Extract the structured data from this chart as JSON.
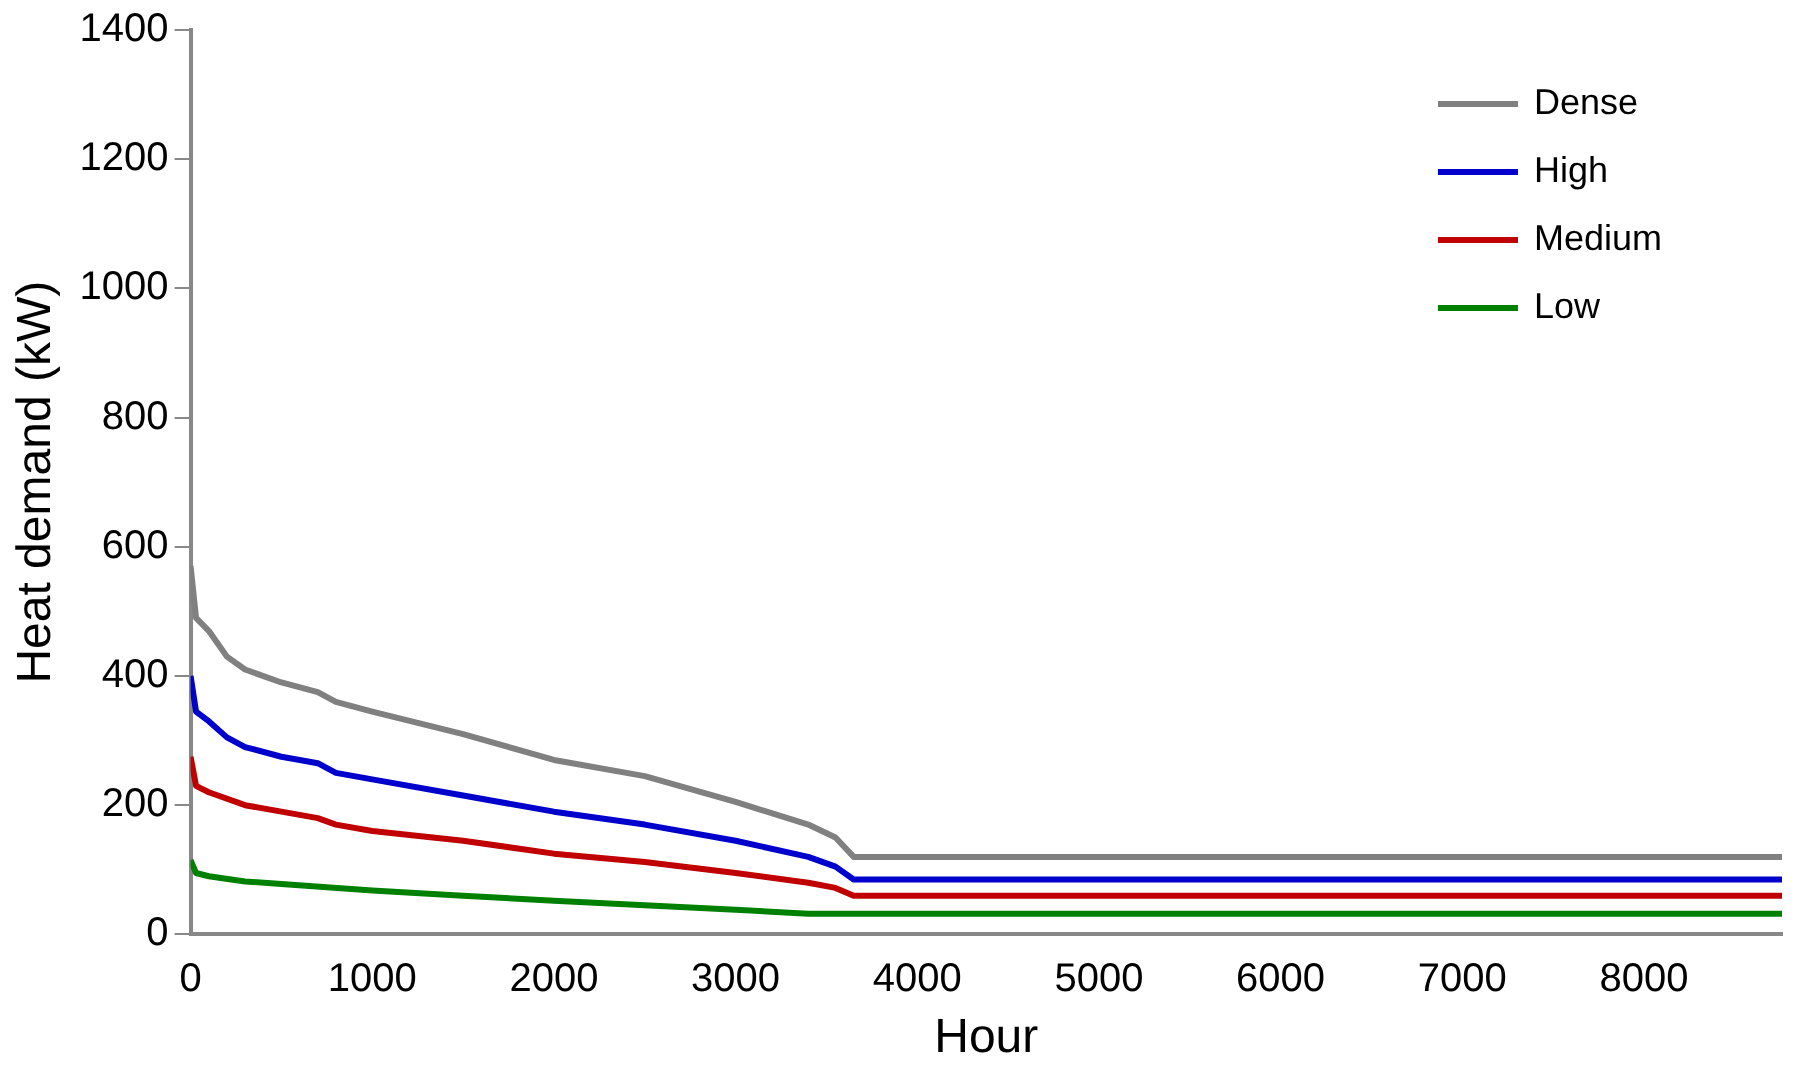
{
  "chart_data": {
    "type": "line",
    "xlabel": "Hour",
    "ylabel": "Heat demand (kW)",
    "xlim": [
      0,
      8760
    ],
    "xticks": [
      0,
      1000,
      2000,
      3000,
      4000,
      5000,
      6000,
      7000,
      8000
    ],
    "ylim": [
      0,
      1400
    ],
    "yticks": [
      0,
      200,
      400,
      600,
      800,
      1000,
      1200,
      1400
    ],
    "grid": false,
    "legend": "top right",
    "marker": "none",
    "line_style": "solid",
    "series": [
      {
        "name": "Dense",
        "color": "#808080",
        "x": [
          0,
          30,
          100,
          200,
          300,
          500,
          700,
          800,
          1000,
          1500,
          2000,
          2500,
          3000,
          3400,
          3550,
          3650,
          8760
        ],
        "values": [
          570,
          490,
          470,
          430,
          410,
          390,
          375,
          360,
          345,
          310,
          270,
          245,
          205,
          170,
          150,
          120,
          120
        ]
      },
      {
        "name": "High",
        "color": "#0000cc",
        "x": [
          0,
          30,
          100,
          200,
          300,
          500,
          700,
          800,
          1000,
          1500,
          2000,
          2500,
          3000,
          3400,
          3550,
          3650,
          8760
        ],
        "values": [
          400,
          345,
          330,
          305,
          290,
          275,
          265,
          250,
          240,
          215,
          190,
          170,
          145,
          120,
          105,
          85,
          85
        ]
      },
      {
        "name": "Medium",
        "color": "#c00000",
        "x": [
          0,
          30,
          100,
          300,
          500,
          700,
          800,
          1000,
          1500,
          2000,
          2500,
          3000,
          3400,
          3550,
          3650,
          8760
        ],
        "values": [
          275,
          230,
          220,
          200,
          190,
          180,
          170,
          160,
          145,
          125,
          112,
          95,
          80,
          72,
          60,
          60
        ]
      },
      {
        "name": "Low",
        "color": "#008000",
        "x": [
          0,
          30,
          100,
          300,
          500,
          1000,
          1500,
          2000,
          2500,
          3000,
          3400,
          8760
        ],
        "values": [
          115,
          95,
          90,
          82,
          78,
          68,
          60,
          52,
          45,
          38,
          32,
          32
        ]
      }
    ]
  }
}
